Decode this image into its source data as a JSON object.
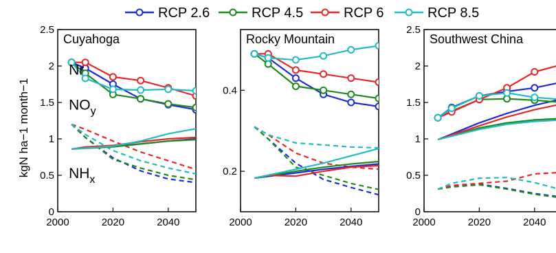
{
  "chart_data": {
    "type": "line",
    "ylabel": "kgN ha−1 month−1",
    "legend": {
      "placement": "top",
      "items": [
        {
          "name": "RCP 2.6",
          "color": "#1f2bd9"
        },
        {
          "name": "RCP 4.5",
          "color": "#1e8a1e"
        },
        {
          "name": "RCP 6",
          "color": "#e8262a"
        },
        {
          "name": "RCP 8.5",
          "color": "#1fbcc4"
        }
      ]
    },
    "line_styles": {
      "Nr": "solid-markers",
      "NOy": "solid",
      "NHx": "dashed"
    },
    "panels": [
      {
        "title": "Cuyahoga",
        "xlim": [
          2000,
          2050
        ],
        "ylim": [
          0,
          2.5
        ],
        "xticks": [
          "2000",
          "2020",
          "2040"
        ],
        "xtick_values": [
          2000,
          2020,
          2040
        ],
        "yticks": [
          "0",
          "0.5",
          "1",
          "1.5",
          "2",
          "2.5"
        ],
        "ytick_values": [
          0,
          0.5,
          1,
          1.5,
          2,
          2.5
        ],
        "annotations": [
          {
            "label": "Nr",
            "x": 2004,
            "y": 1.88
          },
          {
            "label": "NO",
            "sub": "y",
            "x": 2004,
            "y": 1.4
          },
          {
            "label": "NH",
            "sub": "x",
            "x": 2004,
            "y": 0.46
          }
        ],
        "series": [
          {
            "name": "RCP 2.6",
            "group": "Nr",
            "x": [
              2005,
              2010,
              2020,
              2030,
              2040,
              2050
            ],
            "y": [
              2.05,
              1.97,
              1.75,
              1.55,
              1.47,
              1.4
            ]
          },
          {
            "name": "RCP 4.5",
            "group": "Nr",
            "x": [
              2005,
              2010,
              2020,
              2030,
              2040,
              2050
            ],
            "y": [
              2.05,
              1.9,
              1.61,
              1.55,
              1.48,
              1.43
            ]
          },
          {
            "name": "RCP 6",
            "group": "Nr",
            "x": [
              2005,
              2010,
              2020,
              2030,
              2040,
              2050
            ],
            "y": [
              2.05,
              2.05,
              1.85,
              1.8,
              1.7,
              1.59
            ]
          },
          {
            "name": "RCP 8.5",
            "group": "Nr",
            "x": [
              2005,
              2010,
              2020,
              2030,
              2040,
              2050
            ],
            "y": [
              2.05,
              1.83,
              1.68,
              1.67,
              1.68,
              1.66
            ]
          },
          {
            "name": "RCP 2.6",
            "group": "NOy",
            "x": [
              2005,
              2020,
              2030,
              2040,
              2050
            ],
            "y": [
              0.86,
              0.9,
              0.93,
              0.97,
              1.0
            ]
          },
          {
            "name": "RCP 4.5",
            "group": "NOy",
            "x": [
              2005,
              2020,
              2030,
              2040,
              2050
            ],
            "y": [
              0.86,
              0.89,
              0.93,
              0.97,
              0.99
            ]
          },
          {
            "name": "RCP 6",
            "group": "NOy",
            "x": [
              2005,
              2010,
              2020,
              2030,
              2040,
              2050
            ],
            "y": [
              0.86,
              0.89,
              0.91,
              0.96,
              1.0,
              1.02
            ]
          },
          {
            "name": "RCP 8.5",
            "group": "NOy",
            "x": [
              2005,
              2020,
              2030,
              2040,
              2050
            ],
            "y": [
              0.86,
              0.9,
              0.97,
              1.07,
              1.14
            ]
          },
          {
            "name": "RCP 2.6",
            "group": "NHx",
            "x": [
              2005,
              2010,
              2020,
              2030,
              2040,
              2050
            ],
            "y": [
              1.2,
              1.02,
              0.74,
              0.56,
              0.45,
              0.4
            ]
          },
          {
            "name": "RCP 4.5",
            "group": "NHx",
            "x": [
              2005,
              2010,
              2020,
              2030,
              2040,
              2050
            ],
            "y": [
              1.2,
              1.02,
              0.72,
              0.6,
              0.5,
              0.44
            ]
          },
          {
            "name": "RCP 6",
            "group": "NHx",
            "x": [
              2005,
              2010,
              2020,
              2030,
              2040,
              2050
            ],
            "y": [
              1.2,
              1.13,
              0.97,
              0.82,
              0.7,
              0.58
            ]
          },
          {
            "name": "RCP 8.5",
            "group": "NHx",
            "x": [
              2005,
              2010,
              2020,
              2030,
              2040,
              2050
            ],
            "y": [
              1.2,
              1.06,
              0.84,
              0.7,
              0.6,
              0.52
            ]
          }
        ]
      },
      {
        "title": "Rocky Mountain",
        "xlim": [
          2000,
          2050
        ],
        "ylim": [
          0.1,
          0.55
        ],
        "xticks": [
          "2000",
          "2020",
          "2040"
        ],
        "xtick_values": [
          2000,
          2020,
          2040
        ],
        "yticks": [
          "0.2",
          "0.4"
        ],
        "ytick_values": [
          0.2,
          0.4
        ],
        "annotations": [],
        "series": [
          {
            "name": "RCP 2.6",
            "group": "Nr",
            "x": [
              2005,
              2010,
              2020,
              2030,
              2040,
              2050
            ],
            "y": [
              0.49,
              0.48,
              0.43,
              0.39,
              0.37,
              0.36
            ]
          },
          {
            "name": "RCP 4.5",
            "group": "Nr",
            "x": [
              2005,
              2010,
              2020,
              2030,
              2040,
              2050
            ],
            "y": [
              0.49,
              0.465,
              0.41,
              0.4,
              0.39,
              0.38
            ]
          },
          {
            "name": "RCP 6",
            "group": "Nr",
            "x": [
              2005,
              2010,
              2020,
              2030,
              2040,
              2050
            ],
            "y": [
              0.49,
              0.49,
              0.45,
              0.44,
              0.43,
              0.42
            ]
          },
          {
            "name": "RCP 8.5",
            "group": "Nr",
            "x": [
              2005,
              2010,
              2020,
              2030,
              2040,
              2050
            ],
            "y": [
              0.49,
              0.48,
              0.475,
              0.485,
              0.5,
              0.51
            ]
          },
          {
            "name": "RCP 2.6",
            "group": "NOy",
            "x": [
              2005,
              2020,
              2030,
              2040,
              2050
            ],
            "y": [
              0.183,
              0.196,
              0.205,
              0.212,
              0.218
            ]
          },
          {
            "name": "RCP 4.5",
            "group": "NOy",
            "x": [
              2005,
              2020,
              2030,
              2040,
              2050
            ],
            "y": [
              0.183,
              0.2,
              0.21,
              0.218,
              0.224
            ]
          },
          {
            "name": "RCP 6",
            "group": "NOy",
            "x": [
              2005,
              2010,
              2020,
              2030,
              2040,
              2050
            ],
            "y": [
              0.183,
              0.19,
              0.188,
              0.2,
              0.21,
              0.214
            ]
          },
          {
            "name": "RCP 8.5",
            "group": "NOy",
            "x": [
              2005,
              2020,
              2030,
              2040,
              2050
            ],
            "y": [
              0.183,
              0.205,
              0.22,
              0.238,
              0.256
            ]
          },
          {
            "name": "RCP 2.6",
            "group": "NHx",
            "x": [
              2005,
              2010,
              2020,
              2030,
              2040,
              2050
            ],
            "y": [
              0.31,
              0.28,
              0.22,
              0.18,
              0.16,
              0.142
            ]
          },
          {
            "name": "RCP 4.5",
            "group": "NHx",
            "x": [
              2005,
              2010,
              2020,
              2030,
              2040,
              2050
            ],
            "y": [
              0.31,
              0.28,
              0.21,
              0.19,
              0.17,
              0.155
            ]
          },
          {
            "name": "RCP 6",
            "group": "NHx",
            "x": [
              2005,
              2010,
              2020,
              2030,
              2040,
              2050
            ],
            "y": [
              0.31,
              0.29,
              0.245,
              0.22,
              0.21,
              0.205
            ]
          },
          {
            "name": "RCP 8.5",
            "group": "NHx",
            "x": [
              2005,
              2010,
              2020,
              2030,
              2040,
              2050
            ],
            "y": [
              0.31,
              0.29,
              0.27,
              0.265,
              0.26,
              0.258
            ]
          }
        ]
      },
      {
        "title": "Southwest China",
        "xlim": [
          2000,
          2050
        ],
        "ylim": [
          0,
          2.5
        ],
        "xticks": [
          "2000",
          "2020",
          "2040"
        ],
        "xtick_values": [
          2000,
          2020,
          2040
        ],
        "yticks": [
          "0",
          "0.5",
          "1",
          "1.5",
          "2",
          "2.5"
        ],
        "ytick_values": [
          0,
          0.5,
          1,
          1.5,
          2,
          2.5
        ],
        "annotations": [],
        "series": [
          {
            "name": "RCP 2.6",
            "group": "Nr",
            "x": [
              2005,
              2010,
              2020,
              2030,
              2040,
              2050
            ],
            "y": [
              1.29,
              1.43,
              1.59,
              1.65,
              1.7,
              1.78
            ]
          },
          {
            "name": "RCP 4.5",
            "group": "Nr",
            "x": [
              2005,
              2010,
              2020,
              2030,
              2040,
              2050
            ],
            "y": [
              1.29,
              1.38,
              1.54,
              1.55,
              1.53,
              1.5
            ]
          },
          {
            "name": "RCP 6",
            "group": "Nr",
            "x": [
              2005,
              2010,
              2020,
              2030,
              2040,
              2050
            ],
            "y": [
              1.29,
              1.37,
              1.54,
              1.7,
              1.92,
              2.02
            ]
          },
          {
            "name": "RCP 8.5",
            "group": "Nr",
            "x": [
              2005,
              2010,
              2020,
              2030,
              2040,
              2050
            ],
            "y": [
              1.29,
              1.42,
              1.59,
              1.63,
              1.57,
              1.54
            ]
          },
          {
            "name": "RCP 2.6",
            "group": "NOy",
            "x": [
              2005,
              2020,
              2030,
              2040,
              2050
            ],
            "y": [
              0.99,
              1.22,
              1.35,
              1.46,
              1.55
            ]
          },
          {
            "name": "RCP 4.5",
            "group": "NOy",
            "x": [
              2005,
              2020,
              2030,
              2040,
              2050
            ],
            "y": [
              0.99,
              1.15,
              1.22,
              1.26,
              1.28
            ]
          },
          {
            "name": "RCP 6",
            "group": "NOy",
            "x": [
              2005,
              2020,
              2030,
              2040,
              2050
            ],
            "y": [
              0.99,
              1.18,
              1.3,
              1.4,
              1.48
            ]
          },
          {
            "name": "RCP 8.5",
            "group": "NOy",
            "x": [
              2005,
              2020,
              2030,
              2040,
              2050
            ],
            "y": [
              0.99,
              1.13,
              1.2,
              1.24,
              1.26
            ]
          },
          {
            "name": "RCP 2.6",
            "group": "NHx",
            "x": [
              2005,
              2010,
              2020,
              2030,
              2040,
              2050
            ],
            "y": [
              0.31,
              0.35,
              0.38,
              0.32,
              0.25,
              0.2
            ]
          },
          {
            "name": "RCP 4.5",
            "group": "NHx",
            "x": [
              2005,
              2010,
              2020,
              2030,
              2040,
              2050
            ],
            "y": [
              0.31,
              0.34,
              0.37,
              0.31,
              0.24,
              0.19
            ]
          },
          {
            "name": "RCP 6",
            "group": "NHx",
            "x": [
              2005,
              2010,
              2020,
              2030,
              2040,
              2050
            ],
            "y": [
              0.31,
              0.36,
              0.39,
              0.42,
              0.52,
              0.54
            ]
          },
          {
            "name": "RCP 8.5",
            "group": "NHx",
            "x": [
              2005,
              2010,
              2020,
              2030,
              2040,
              2050
            ],
            "y": [
              0.31,
              0.39,
              0.46,
              0.47,
              0.4,
              0.3
            ]
          }
        ]
      }
    ]
  }
}
